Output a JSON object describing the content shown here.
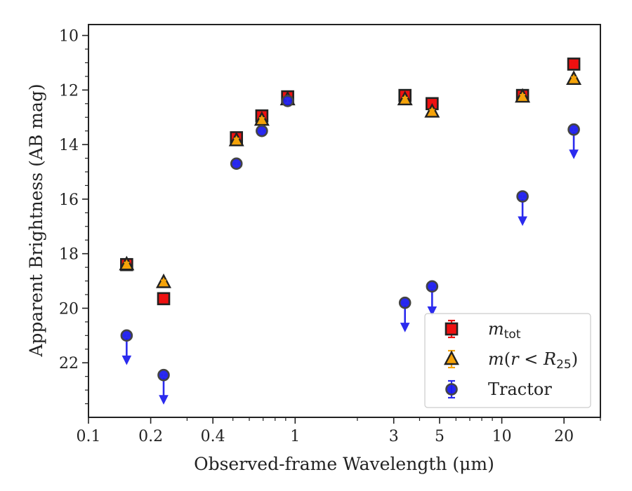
{
  "chart_data": {
    "type": "scatter",
    "xlabel": "Observed-frame Wavelength (μm)",
    "ylabel": "Apparent Brightness (AB mag)",
    "x_scale": "log",
    "xlim": [
      0.1,
      30
    ],
    "ylim": [
      24,
      9.6
    ],
    "y_inverted": true,
    "x_ticks": [
      {
        "value": 0.1,
        "label": "0.1"
      },
      {
        "value": 0.2,
        "label": "0.2"
      },
      {
        "value": 0.4,
        "label": "0.4"
      },
      {
        "value": 1,
        "label": "1"
      },
      {
        "value": 3,
        "label": "3"
      },
      {
        "value": 5,
        "label": "5"
      },
      {
        "value": 10,
        "label": "10"
      },
      {
        "value": 20,
        "label": "20"
      }
    ],
    "y_ticks": [
      {
        "value": 10,
        "label": "10"
      },
      {
        "value": 12,
        "label": "12"
      },
      {
        "value": 14,
        "label": "14"
      },
      {
        "value": 16,
        "label": "16"
      },
      {
        "value": 18,
        "label": "18"
      },
      {
        "value": 20,
        "label": "20"
      },
      {
        "value": 22,
        "label": "22"
      }
    ],
    "grid": false,
    "legend_position": "lower-right",
    "series": [
      {
        "name": "m_tot",
        "legend_parts": [
          {
            "t": "m",
            "style": "italic"
          },
          {
            "t": "tot",
            "style": "sub"
          }
        ],
        "marker": "square",
        "face_color": "#ee1111",
        "edge_color": "#222222",
        "err_color": "#ee1111",
        "points": [
          {
            "x": 0.153,
            "y": 18.4
          },
          {
            "x": 0.231,
            "y": 19.65
          },
          {
            "x": 0.52,
            "y": 13.75
          },
          {
            "x": 0.69,
            "y": 12.95
          },
          {
            "x": 0.92,
            "y": 12.25
          },
          {
            "x": 3.4,
            "y": 12.2
          },
          {
            "x": 4.6,
            "y": 12.5
          },
          {
            "x": 12.6,
            "y": 12.2
          },
          {
            "x": 22.3,
            "y": 11.05
          }
        ]
      },
      {
        "name": "m(r < R25)",
        "legend_parts": [
          {
            "t": "m",
            "style": "italic"
          },
          {
            "t": "(",
            "style": "normal"
          },
          {
            "t": "r",
            "style": "italic"
          },
          {
            "t": " < ",
            "style": "normal"
          },
          {
            "t": "R",
            "style": "italic"
          },
          {
            "t": "25",
            "style": "sub"
          },
          {
            "t": ")",
            "style": "normal"
          }
        ],
        "marker": "triangle",
        "face_color": "#f5a30a",
        "edge_color": "#222222",
        "err_color": "#f5a30a",
        "points": [
          {
            "x": 0.153,
            "y": 18.4
          },
          {
            "x": 0.231,
            "y": 19.05
          },
          {
            "x": 0.52,
            "y": 13.85
          },
          {
            "x": 0.69,
            "y": 13.1
          },
          {
            "x": 0.92,
            "y": 12.35
          },
          {
            "x": 3.4,
            "y": 12.35
          },
          {
            "x": 4.6,
            "y": 12.8
          },
          {
            "x": 12.6,
            "y": 12.25
          },
          {
            "x": 22.3,
            "y": 11.6
          }
        ]
      },
      {
        "name": "Tractor",
        "legend_parts": [
          {
            "t": "Tractor",
            "style": "normal"
          }
        ],
        "marker": "circle",
        "face_color": "#1a1aee",
        "edge_color": "#444444",
        "err_color": "#2b2bee",
        "points": [
          {
            "x": 0.153,
            "y": 21.0,
            "upper_limit": true
          },
          {
            "x": 0.231,
            "y": 22.45,
            "upper_limit": true
          },
          {
            "x": 0.52,
            "y": 14.7
          },
          {
            "x": 0.69,
            "y": 13.5
          },
          {
            "x": 0.92,
            "y": 12.4
          },
          {
            "x": 3.4,
            "y": 19.8,
            "upper_limit": true
          },
          {
            "x": 4.6,
            "y": 19.2,
            "upper_limit": true
          },
          {
            "x": 12.6,
            "y": 15.9,
            "upper_limit": true
          },
          {
            "x": 22.3,
            "y": 13.45,
            "upper_limit": true
          }
        ]
      }
    ]
  }
}
